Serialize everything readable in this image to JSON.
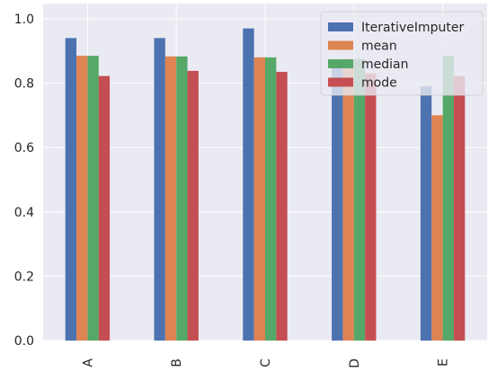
{
  "chart_data": {
    "type": "bar",
    "title": "",
    "xlabel": "",
    "ylabel": "",
    "categories": [
      "A",
      "B",
      "C",
      "D",
      "E"
    ],
    "ylim": [
      0,
      1.0
    ],
    "yticks": [
      "0.0",
      "0.2",
      "0.4",
      "0.6",
      "0.8",
      "1.0"
    ],
    "grid": true,
    "legend_position": "top-right",
    "series": [
      {
        "name": "IterativeImputer",
        "color": "#4c72b0",
        "values": [
          0.94,
          0.94,
          0.97,
          0.86,
          0.79
        ]
      },
      {
        "name": "mean",
        "color": "#dd8452",
        "values": [
          0.885,
          0.883,
          0.88,
          0.875,
          0.7
        ]
      },
      {
        "name": "median",
        "color": "#55a868",
        "values": [
          0.885,
          0.883,
          0.88,
          0.875,
          0.885
        ]
      },
      {
        "name": "mode",
        "color": "#c44e52",
        "values": [
          0.822,
          0.838,
          0.835,
          0.83,
          0.822
        ]
      }
    ]
  }
}
